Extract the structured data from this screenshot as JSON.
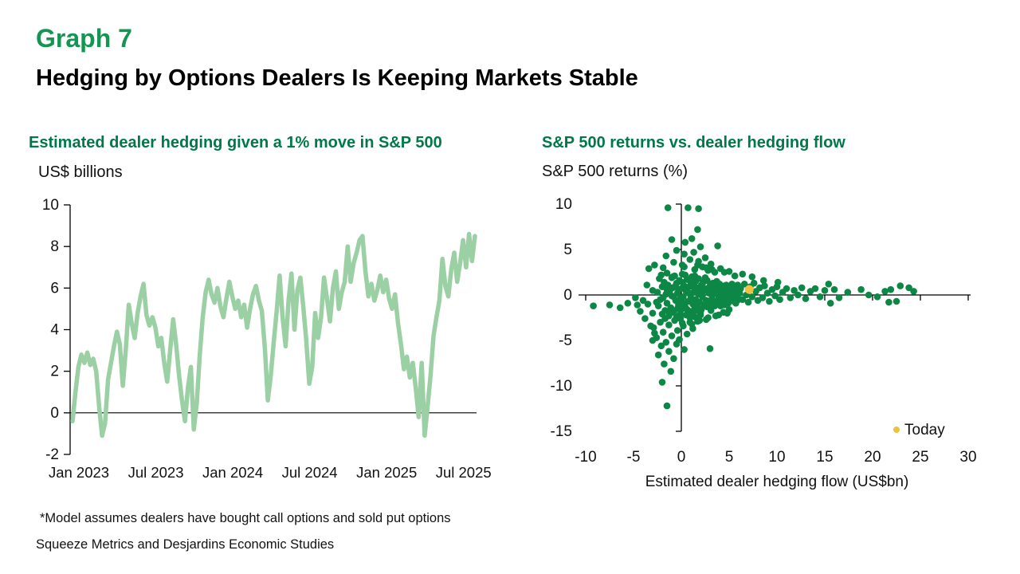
{
  "header": {
    "graph_label": "Graph 7",
    "title": "Hedging by Options Dealers Is Keeping Markets Stable"
  },
  "footer": {
    "note": "*Model assumes dealers have bought call options and sold put options",
    "source": "Squeeze Metrics and Desjardins Economic Studies"
  },
  "chart_data": [
    {
      "type": "line",
      "title": "Estimated dealer hedging given a 1% move in S&P 500",
      "ylabel": "US$ billions",
      "xlabel": "",
      "ylim": [
        -2,
        10
      ],
      "y_ticks": [
        -2,
        0,
        2,
        4,
        6,
        8,
        10
      ],
      "x_tick_labels": [
        "Jan 2023",
        "Jul 2023",
        "Jan 2024",
        "Jul 2024",
        "Jan 2025",
        "Jul 2025"
      ],
      "x_tick_indices": [
        0,
        26,
        52,
        78,
        104,
        130
      ],
      "grid": "zero-line-only",
      "line_color": "#9bcfa4",
      "values": [
        -0.4,
        1,
        2.2,
        2.8,
        2.4,
        2.9,
        2.3,
        2.6,
        2,
        0.3,
        -1.1,
        -0.5,
        1.6,
        2.4,
        3.2,
        3.9,
        3.3,
        1.3,
        3,
        5.2,
        4.3,
        3.6,
        4.8,
        5.6,
        6.2,
        4.7,
        4.2,
        4.6,
        4.1,
        3.2,
        3.6,
        2.4,
        1.5,
        3,
        4.5,
        3.3,
        1.8,
        0.6,
        -0.4,
        1.2,
        2.2,
        -0.8,
        0.5,
        2.8,
        4.6,
        5.8,
        6.4,
        5.7,
        5.3,
        6,
        5.1,
        4.6,
        5.5,
        6.3,
        5.6,
        5,
        5.4,
        4.6,
        5.2,
        4.1,
        5,
        5.7,
        6.1,
        5.4,
        4.9,
        3.1,
        0.6,
        1.8,
        3.4,
        4.9,
        6.6,
        4.6,
        3.2,
        5.4,
        6.7,
        4,
        5.9,
        6.5,
        5.1,
        3.5,
        1.4,
        2.2,
        4.8,
        3.6,
        4.6,
        6.5,
        5.5,
        4.4,
        6,
        6.8,
        5,
        5.8,
        6.3,
        8,
        6.3,
        7.2,
        7.7,
        8.3,
        8.5,
        6.8,
        5.6,
        6.2,
        5.4,
        5.9,
        6.6,
        5.8,
        6.4,
        5.5,
        5,
        5.7,
        4.3,
        3.3,
        2.1,
        2.7,
        1.7,
        2.4,
        1.2,
        -0.2,
        2.4,
        -1.1,
        0.3,
        1.8,
        3.7,
        4.6,
        5.4,
        7.4,
        6.1,
        5.6,
        6.9,
        7.7,
        6.3,
        7.2,
        8.3,
        7,
        8.6,
        7.3,
        8.5
      ]
    },
    {
      "type": "scatter",
      "title": "S&P 500 returns vs. dealer hedging flow",
      "ylabel": "S&P 500 returns (%)",
      "xlabel": "Estimated dealer hedging flow (US$bn)",
      "xlim": [
        -10.75,
        30.25
      ],
      "ylim": [
        -15,
        10
      ],
      "x_ticks": [
        -10,
        -5,
        0,
        5,
        10,
        15,
        20,
        25,
        30
      ],
      "y_ticks": [
        -15,
        -10,
        -5,
        0,
        5,
        10
      ],
      "grid": "off",
      "legend_position": "bottom-right",
      "point_color": "#0d8745",
      "today_color": "#ecc23e",
      "legend": {
        "label": "Today"
      },
      "today": [
        7.1,
        0.6
      ],
      "points": [
        [
          -2.5,
          0.3
        ],
        [
          -2.4,
          -1.2
        ],
        [
          -2.3,
          1.8
        ],
        [
          -2.2,
          -0.5
        ],
        [
          -2.1,
          2.2
        ],
        [
          -2,
          -2.1
        ],
        [
          -2,
          0.9
        ],
        [
          -1.9,
          -0.3
        ],
        [
          -1.8,
          1.4
        ],
        [
          -1.7,
          -1.7
        ],
        [
          -1.6,
          0.1
        ],
        [
          -1.5,
          2.4
        ],
        [
          -1.5,
          -0.9
        ],
        [
          -1.4,
          1.1
        ],
        [
          -1.3,
          -2.3
        ],
        [
          -1.2,
          0.5
        ],
        [
          -1.1,
          -1.4
        ],
        [
          -1,
          1.9
        ],
        [
          -1,
          -0.1
        ],
        [
          -0.9,
          0.8
        ],
        [
          -0.8,
          -1.9
        ],
        [
          -0.7,
          2.1
        ],
        [
          -0.6,
          -0.6
        ],
        [
          -0.5,
          1.3
        ],
        [
          -0.5,
          -2.4
        ],
        [
          -0.4,
          0.2
        ],
        [
          -0.3,
          -1.1
        ],
        [
          -0.2,
          1.6
        ],
        [
          -0.1,
          -0.4
        ],
        [
          0,
          0.7
        ],
        [
          0,
          -1.6
        ],
        [
          0.1,
          2.3
        ],
        [
          0.2,
          -0.2
        ],
        [
          0.3,
          1
        ],
        [
          0.4,
          -1.3
        ],
        [
          0.5,
          0.4
        ],
        [
          0.5,
          -2.2
        ],
        [
          0.6,
          1.7
        ],
        [
          0.7,
          -0.7
        ],
        [
          0.8,
          0.9
        ],
        [
          0.9,
          -1.8
        ],
        [
          1,
          1.2
        ],
        [
          1,
          -0.3
        ],
        [
          1.1,
          2
        ],
        [
          1.2,
          -1
        ],
        [
          1.3,
          0.3
        ],
        [
          1.4,
          -1.5
        ],
        [
          1.5,
          1.5
        ],
        [
          1.5,
          -0.5
        ],
        [
          1.6,
          0.8
        ],
        [
          1.7,
          -1.2
        ],
        [
          1.8,
          1.8
        ],
        [
          1.9,
          -0.8
        ],
        [
          2,
          0.5
        ],
        [
          2,
          -1.9
        ],
        [
          2.1,
          1.1
        ],
        [
          2.2,
          -0.2
        ],
        [
          2.3,
          1.4
        ],
        [
          2.4,
          -1.1
        ],
        [
          2.5,
          0.7
        ],
        [
          2.6,
          -0.6
        ],
        [
          2.7,
          1.6
        ],
        [
          2.8,
          -0.9
        ],
        [
          2.9,
          0.2
        ],
        [
          3,
          1
        ],
        [
          3,
          -1.4
        ],
        [
          3.1,
          0.6
        ],
        [
          3.2,
          -0.4
        ],
        [
          3.3,
          1.3
        ],
        [
          3.4,
          -1
        ],
        [
          3.5,
          0.4
        ],
        [
          3.6,
          1.1
        ],
        [
          3.7,
          -0.7
        ],
        [
          3.8,
          0.8
        ],
        [
          3.9,
          -0.2
        ],
        [
          4,
          1.2
        ],
        [
          4,
          -0.9
        ],
        [
          4.1,
          0.3
        ],
        [
          4.2,
          -0.5
        ],
        [
          4.3,
          0.9
        ],
        [
          4.4,
          -0.3
        ],
        [
          4.5,
          1
        ],
        [
          4.6,
          -0.8
        ],
        [
          4.7,
          0.5
        ],
        [
          4.8,
          -0.1
        ],
        [
          4.9,
          0.7
        ],
        [
          5,
          -0.6
        ],
        [
          5.1,
          0.9
        ],
        [
          5.2,
          0.1
        ],
        [
          5.3,
          -0.4
        ],
        [
          5.4,
          0.6
        ],
        [
          5.5,
          -0.7
        ],
        [
          5.6,
          0.3
        ],
        [
          5.7,
          1
        ],
        [
          5.8,
          -0.3
        ],
        [
          5.9,
          0.5
        ],
        [
          6,
          -0.5
        ],
        [
          -1.5,
          0.6
        ],
        [
          -1.2,
          -2
        ],
        [
          -0.9,
          2
        ],
        [
          -0.8,
          -0.2
        ],
        [
          -0.6,
          1
        ],
        [
          -0.4,
          -1.5
        ],
        [
          -0.3,
          0.6
        ],
        [
          -0.1,
          -2.1
        ],
        [
          0.1,
          1.4
        ],
        [
          0.2,
          -0.9
        ],
        [
          0.4,
          2.2
        ],
        [
          0.6,
          -1.6
        ],
        [
          0.8,
          0.2
        ],
        [
          0.9,
          1.6
        ],
        [
          1.1,
          -2.1
        ],
        [
          1.2,
          0.9
        ],
        [
          1.4,
          2.1
        ],
        [
          1.6,
          -1.7
        ],
        [
          1.8,
          0.1
        ],
        [
          2.1,
          -1.6
        ],
        [
          2.3,
          0.4
        ],
        [
          2.5,
          1.9
        ],
        [
          2.7,
          -1.3
        ],
        [
          2.9,
          0.8
        ],
        [
          3.1,
          -1.7
        ],
        [
          3.3,
          0.1
        ],
        [
          3.5,
          -1.2
        ],
        [
          3.7,
          1.5
        ],
        [
          3.9,
          0.6
        ],
        [
          4.1,
          -1.2
        ],
        [
          4.3,
          0.2
        ],
        [
          4.5,
          -1.1
        ],
        [
          4.7,
          1.1
        ],
        [
          4.9,
          -0.9
        ],
        [
          5.1,
          0.4
        ],
        [
          5.3,
          1.2
        ],
        [
          5.5,
          0
        ],
        [
          5.7,
          -0.9
        ],
        [
          5.9,
          1.1
        ],
        [
          6.1,
          0.2
        ],
        [
          0.3,
          3.1
        ],
        [
          1.7,
          3.3
        ],
        [
          2.6,
          3
        ],
        [
          3.2,
          2.8
        ],
        [
          4.5,
          2.5
        ],
        [
          0.9,
          -3
        ],
        [
          1.9,
          -2.8
        ],
        [
          2.8,
          -2.5
        ],
        [
          3.9,
          -2.2
        ],
        [
          0.2,
          -3.4
        ],
        [
          1.1,
          -3.2
        ],
        [
          6.2,
          0.7
        ],
        [
          6.4,
          -0.5
        ],
        [
          6.6,
          1.2
        ],
        [
          6.8,
          0
        ],
        [
          7,
          -0.8
        ],
        [
          7.2,
          0.9
        ],
        [
          7.4,
          -0.2
        ],
        [
          7.6,
          1.3
        ],
        [
          7.8,
          0.4
        ],
        [
          8,
          -0.6
        ],
        [
          8.2,
          0.8
        ],
        [
          8.5,
          -0.3
        ],
        [
          8.7,
          1
        ],
        [
          9,
          0.2
        ],
        [
          9.2,
          -0.7
        ],
        [
          9.5,
          0.6
        ],
        [
          9.8,
          -0.1
        ],
        [
          10,
          0.9
        ],
        [
          10.3,
          -0.5
        ],
        [
          10.6,
          0.3
        ],
        [
          11,
          0.7
        ],
        [
          11.4,
          -0.3
        ],
        [
          11.8,
          0.5
        ],
        [
          12.2,
          0
        ],
        [
          12.6,
          0.8
        ],
        [
          13,
          -0.4
        ],
        [
          13.5,
          0.4
        ],
        [
          14,
          0.7
        ],
        [
          14.5,
          -0.2
        ],
        [
          15,
          0.5
        ],
        [
          15.4,
          1.2
        ],
        [
          15.6,
          -0.9
        ],
        [
          16,
          0.6
        ],
        [
          16.5,
          -0.3
        ],
        [
          17.4,
          0.3
        ],
        [
          18.8,
          0.6
        ],
        [
          19.6,
          0
        ],
        [
          20.5,
          -0.2
        ],
        [
          21.3,
          0.4
        ],
        [
          21.9,
          0.6
        ],
        [
          21.7,
          -0.8
        ],
        [
          22.5,
          -0.7
        ],
        [
          22.9,
          1
        ],
        [
          23.8,
          0.8
        ],
        [
          24.3,
          0.4
        ],
        [
          -9.2,
          -1.2
        ],
        [
          -7.5,
          -1.1
        ],
        [
          -6.4,
          -1.4
        ],
        [
          -5.6,
          -0.9
        ],
        [
          -4.8,
          -0.3
        ],
        [
          -4.6,
          -1.1
        ],
        [
          -4.3,
          -1.8
        ],
        [
          -4,
          -0.6
        ],
        [
          -3.8,
          -2.6
        ],
        [
          -3.6,
          1.1
        ],
        [
          -3.5,
          -1
        ],
        [
          -3.4,
          2.9
        ],
        [
          -3.2,
          -3.4
        ],
        [
          -3,
          0.5
        ],
        [
          -3,
          -2
        ],
        [
          -2.8,
          3.3
        ],
        [
          -2.8,
          -4.2
        ],
        [
          -2.6,
          -0.8
        ],
        [
          -1.4,
          9.6
        ],
        [
          0.7,
          9.6
        ],
        [
          1.8,
          9.5
        ],
        [
          1.7,
          7.2
        ],
        [
          1.1,
          6.2
        ],
        [
          -1,
          6.1
        ],
        [
          0.4,
          5.8
        ],
        [
          2,
          5.3
        ],
        [
          3.8,
          5.4
        ],
        [
          -0.5,
          4.9
        ],
        [
          1.3,
          4.7
        ],
        [
          0.3,
          4.5
        ],
        [
          -1.6,
          4.3
        ],
        [
          2.5,
          4.1
        ],
        [
          0.9,
          3.9
        ],
        [
          1.8,
          3.7
        ],
        [
          -0.8,
          3.6
        ],
        [
          3.1,
          3.4
        ],
        [
          0.1,
          3.3
        ],
        [
          2.2,
          3.1
        ],
        [
          4.1,
          2.9
        ],
        [
          -1.9,
          3
        ],
        [
          1.4,
          2.8
        ],
        [
          5,
          2.6
        ],
        [
          2.8,
          2.7
        ],
        [
          6.4,
          2.3
        ],
        [
          3.5,
          2.5
        ],
        [
          7.4,
          2
        ],
        [
          5.6,
          2.1
        ],
        [
          8.6,
          1.6
        ],
        [
          10.1,
          1.4
        ],
        [
          -1.5,
          -12.2
        ],
        [
          -2,
          -9.6
        ],
        [
          -1.1,
          -8.4
        ],
        [
          -1.8,
          -7.6
        ],
        [
          -0.8,
          -7
        ],
        [
          -2.4,
          -6.6
        ],
        [
          -1.3,
          -6.2
        ],
        [
          0.3,
          -6
        ],
        [
          3,
          -5.9
        ],
        [
          -2.1,
          -5.6
        ],
        [
          -0.5,
          -5.4
        ],
        [
          -1.6,
          -5.2
        ],
        [
          -3,
          -5
        ],
        [
          -0.2,
          -4.9
        ],
        [
          -2.6,
          -4.7
        ],
        [
          -1,
          -4.5
        ],
        [
          0.6,
          -4.3
        ],
        [
          -1.9,
          -4.1
        ],
        [
          -0.4,
          -3.9
        ],
        [
          1.2,
          -3.7
        ],
        [
          -2.9,
          -3.6
        ],
        [
          -1.3,
          -3.3
        ],
        [
          0.1,
          -3.1
        ],
        [
          -2.2,
          -3
        ],
        [
          1.7,
          -2.9
        ],
        [
          -0.7,
          -2.8
        ],
        [
          2.6,
          -2.7
        ],
        [
          -1.7,
          -2.6
        ],
        [
          0.9,
          -2.5
        ],
        [
          3.6,
          -2.3
        ],
        [
          4.4,
          -1.9
        ],
        [
          5,
          -1.6
        ],
        [
          -0.1,
          -2.6
        ],
        [
          1.4,
          -2.4
        ],
        [
          2,
          -2.2
        ],
        [
          4.8,
          -2
        ]
      ]
    }
  ]
}
